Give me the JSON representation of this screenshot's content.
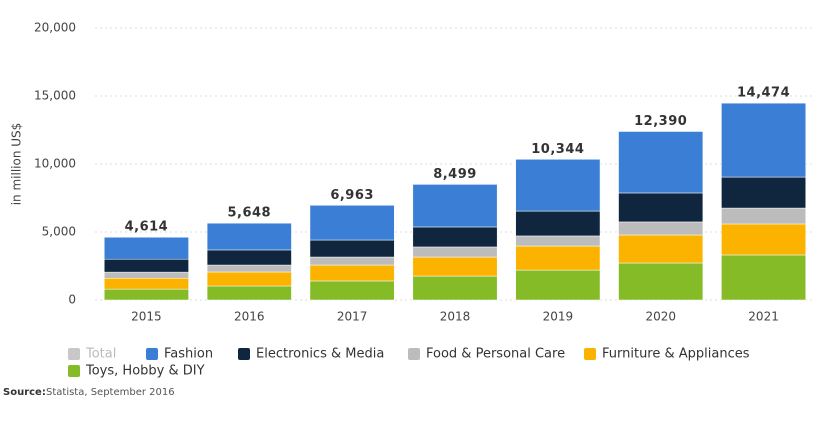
{
  "chart_data": {
    "type": "stacked_bar",
    "y_label": "in million US$",
    "categories": [
      "2015",
      "2016",
      "2017",
      "2018",
      "2019",
      "2020",
      "2021"
    ],
    "series": [
      {
        "name": "Total",
        "color": "#c8c8c8",
        "visible": false,
        "values": [
          4614,
          5648,
          6963,
          8499,
          10344,
          12390,
          14474
        ],
        "value_labels": [
          "4,614",
          "5,648",
          "6,963",
          "8,499",
          "10,344",
          "12,390",
          "14,474"
        ]
      },
      {
        "name": "Fashion",
        "color": "#3a7fd5",
        "values": [
          1614,
          1968,
          2553,
          3129,
          3804,
          4520,
          5434
        ]
      },
      {
        "name": "Electronics & Media",
        "color": "#10263f",
        "values": [
          950,
          1110,
          1250,
          1470,
          1830,
          2130,
          2280
        ]
      },
      {
        "name": "Food & Personal Care",
        "color": "#bcbcbc",
        "values": [
          450,
          510,
          590,
          740,
          740,
          960,
          1170
        ]
      },
      {
        "name": "Furniture & Appliances",
        "color": "#fbb300",
        "values": [
          800,
          1030,
          1170,
          1400,
          1770,
          2060,
          2280
        ]
      },
      {
        "name": "Toys, Hobby & DIY",
        "color": "#84bb27",
        "values": [
          800,
          1030,
          1400,
          1760,
          2200,
          2720,
          3310
        ]
      }
    ],
    "ylim": [
      0,
      20000
    ],
    "yticks": [
      0,
      {
        "value": 5000,
        "label": "5,000"
      },
      {
        "value": 10000,
        "label": "10,000"
      },
      {
        "value": 15000,
        "label": "15,000"
      },
      {
        "value": 20000,
        "label": "20,000"
      }
    ],
    "grid": true,
    "source_label": "Source:",
    "source": "Statista, September 2016"
  }
}
